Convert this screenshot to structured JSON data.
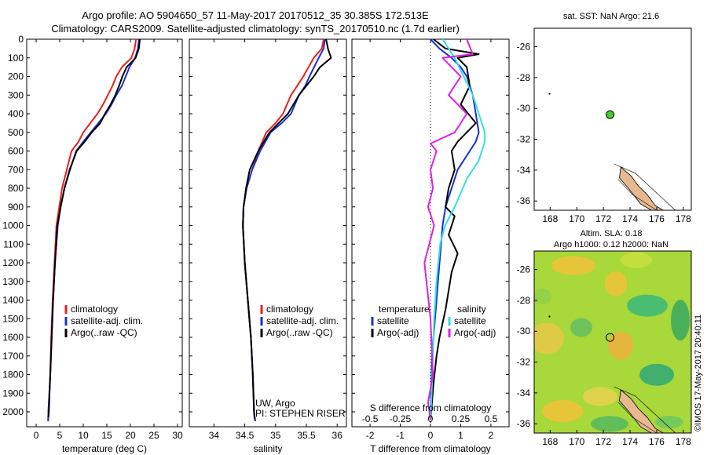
{
  "header": {
    "line1": "Argo profile: AO 5904650_57 11-May-2017 20170512_35 30.385S 172.513E",
    "line2": "Climatology: CARS2009. Satellite-adjusted climatology: synTS_20170510.nc (1.7d earlier)"
  },
  "colors": {
    "climatology": "#e8201c",
    "satellite": "#1a2fd6",
    "argo": "#000000",
    "sal_satellite": "#33e0e0",
    "sal_argo": "#e020e0",
    "land": "#e8b890"
  },
  "chart_data": [
    {
      "type": "line",
      "xlabel": "temperature (deg C)",
      "ylabel": "",
      "xlim": [
        -2,
        31
      ],
      "ylim": [
        2080,
        0
      ],
      "xticks": [
        "0",
        "5",
        "10",
        "15",
        "20",
        "25",
        "30"
      ],
      "yticks": [
        "0",
        "100",
        "200",
        "300",
        "400",
        "500",
        "600",
        "700",
        "800",
        "900",
        "1000",
        "1100",
        "1200",
        "1300",
        "1400",
        "1500",
        "1600",
        "1700",
        "1800",
        "1900",
        "2000"
      ],
      "legend": [
        "climatology",
        "satellite-adj. clim.",
        "Argo(..raw -QC)"
      ],
      "legend_position": "lower-center",
      "series": [
        {
          "name": "climatology",
          "x": [
            21.2,
            20.9,
            20.2,
            18.2,
            17.0,
            16.2,
            15.2,
            14.2,
            13.0,
            11.5,
            10.0,
            9.0,
            7.5,
            6.5,
            5.5,
            4.9,
            4.3,
            3.9,
            3.5,
            3.2,
            3.0,
            2.8,
            2.6,
            2.55
          ],
          "y": [
            0,
            50,
            100,
            150,
            200,
            250,
            300,
            350,
            400,
            450,
            500,
            550,
            600,
            700,
            800,
            900,
            1000,
            1200,
            1400,
            1600,
            1800,
            1900,
            2000,
            2050
          ]
        },
        {
          "name": "satellite-adj. clim.",
          "x": [
            21.8,
            21.6,
            21.0,
            19.8,
            19.0,
            18.2,
            17.0,
            16.0,
            14.8,
            13.2,
            11.6,
            10.0,
            8.5,
            7.2,
            6.0,
            5.2,
            4.6,
            4.0,
            3.6,
            3.3,
            3.0,
            2.8,
            2.6,
            2.55
          ],
          "y": [
            0,
            50,
            100,
            150,
            200,
            250,
            300,
            350,
            400,
            450,
            500,
            550,
            600,
            700,
            800,
            900,
            1000,
            1200,
            1400,
            1600,
            1800,
            1900,
            2000,
            2050
          ]
        },
        {
          "name": "Argo(..raw -QC)",
          "x": [
            22.0,
            21.8,
            21.1,
            19.2,
            18.3,
            17.6,
            16.8,
            15.8,
            14.6,
            13.6,
            11.8,
            10.3,
            8.6,
            7.1,
            6.0,
            5.2,
            4.5,
            4.0,
            3.6,
            3.3,
            3.0,
            2.85,
            2.7,
            2.6
          ],
          "y": [
            0,
            50,
            100,
            150,
            200,
            250,
            300,
            350,
            400,
            450,
            500,
            550,
            600,
            700,
            800,
            900,
            1000,
            1200,
            1400,
            1600,
            1800,
            1900,
            2000,
            2030
          ]
        }
      ]
    },
    {
      "type": "line",
      "xlabel": "salinity",
      "xlim": [
        33.6,
        36.15
      ],
      "ylim": [
        2080,
        0
      ],
      "xticks": [
        "34",
        "34.5",
        "35",
        "35.5",
        "36"
      ],
      "legend": [
        "climatology",
        "satellite-adj. clim.",
        "Argo(..raw -QC)"
      ],
      "annotations": [
        "UW, Argo",
        "PI: STEPHEN RISER"
      ],
      "series": [
        {
          "name": "climatology",
          "x": [
            35.78,
            35.75,
            35.62,
            35.45,
            35.35,
            35.25,
            35.12,
            35.0,
            34.85,
            34.72,
            34.62,
            34.53,
            34.48,
            34.47,
            34.5,
            34.55,
            34.6,
            34.63,
            34.65,
            34.67
          ],
          "y": [
            0,
            50,
            100,
            200,
            250,
            300,
            400,
            450,
            500,
            600,
            700,
            800,
            900,
            1000,
            1200,
            1400,
            1600,
            1800,
            2000,
            2050
          ]
        },
        {
          "name": "satellite-adj. clim.",
          "x": [
            35.8,
            35.78,
            35.7,
            35.55,
            35.48,
            35.38,
            35.25,
            35.1,
            34.92,
            34.75,
            34.62,
            34.53,
            34.48,
            34.47,
            34.5,
            34.55,
            34.6,
            34.63,
            34.65,
            34.67
          ],
          "y": [
            0,
            50,
            100,
            200,
            250,
            300,
            400,
            450,
            500,
            600,
            700,
            800,
            900,
            1000,
            1200,
            1400,
            1600,
            1800,
            2000,
            2050
          ]
        },
        {
          "name": "Argo(..raw -QC)",
          "x": [
            35.82,
            35.85,
            35.9,
            35.72,
            35.62,
            35.5,
            35.38,
            35.2,
            35.05,
            34.9,
            34.72,
            34.58,
            34.52,
            34.48,
            34.47,
            34.5,
            34.55,
            34.6,
            34.63,
            34.65,
            34.66
          ],
          "y": [
            0,
            50,
            100,
            150,
            200,
            250,
            300,
            400,
            450,
            500,
            600,
            700,
            800,
            900,
            1000,
            1200,
            1400,
            1600,
            1800,
            2000,
            2040
          ]
        }
      ]
    },
    {
      "type": "line",
      "xlabel": "T difference from climatology",
      "xlabel_top": "S difference from climatology",
      "xlim": [
        -2.6,
        2.6
      ],
      "ylim": [
        2080,
        0
      ],
      "xticks": [
        "-2",
        "-1",
        "0",
        "1",
        "2"
      ],
      "xticks_s": [
        "-0.5",
        "-0.25",
        "0",
        "0.25",
        "0.5"
      ],
      "legend_temperature": [
        "temperature",
        "satellite",
        "Argo(-adj)"
      ],
      "legend_salinity": [
        "salinity",
        "satellite",
        "Argo(-adj)"
      ],
      "series": [
        {
          "name": "satellite",
          "x": [
            0.0,
            0.3,
            0.7,
            1.0,
            1.2,
            1.4,
            1.5,
            1.6,
            1.5,
            1.3,
            1.1,
            0.9,
            0.7,
            0.5,
            0.4,
            0.35,
            0.3,
            0.25,
            0.2,
            0.15,
            0.1,
            0.05,
            0.02,
            0.0
          ],
          "y": [
            0,
            50,
            100,
            150,
            200,
            300,
            400,
            500,
            550,
            600,
            650,
            700,
            800,
            900,
            1000,
            1100,
            1200,
            1300,
            1400,
            1500,
            1600,
            1700,
            1900,
            2040
          ]
        },
        {
          "name": "Argo(-adj)",
          "x": [
            0.1,
            0.5,
            1.6,
            0.9,
            1.2,
            1.3,
            1.0,
            1.5,
            0.9,
            0.7,
            0.8,
            0.6,
            0.5,
            0.8,
            0.6,
            0.9,
            0.7,
            0.6,
            0.5,
            0.3,
            0.2,
            0.1,
            0.05,
            0.0
          ],
          "y": [
            0,
            50,
            80,
            100,
            150,
            250,
            350,
            450,
            550,
            600,
            700,
            800,
            900,
            950,
            1050,
            1150,
            1250,
            1350,
            1450,
            1600,
            1700,
            1850,
            1950,
            2040
          ]
        },
        {
          "name": "salinity satellite",
          "x": [
            0.1,
            0.2,
            0.35,
            0.45,
            0.45,
            0.4,
            0.3,
            0.2,
            0.12,
            0.08,
            0.05,
            0.03,
            0.02,
            0.01,
            0.0
          ],
          "y": [
            0,
            100,
            300,
            500,
            550,
            650,
            750,
            900,
            1000,
            1100,
            1300,
            1500,
            1700,
            1900,
            2040
          ]
        },
        {
          "name": "salinity Argo(-adj)",
          "x": [
            0.3,
            0.35,
            0.1,
            0.25,
            0.15,
            0.3,
            0.2,
            0.0,
            0.05,
            0.0,
            0.02,
            -0.02,
            0.03,
            -0.05,
            0.0,
            0.02,
            -0.02,
            0.0
          ],
          "y": [
            0,
            80,
            100,
            200,
            300,
            400,
            500,
            560,
            600,
            700,
            800,
            900,
            1000,
            1200,
            1500,
            1800,
            1950,
            2040
          ]
        }
      ]
    }
  ],
  "map_top": {
    "label": "sat. SST: NaN Argo: 21.6",
    "xticks": [
      "168",
      "170",
      "172",
      "174",
      "176",
      "178"
    ],
    "yticks": [
      "-26",
      "-28",
      "-30",
      "-32",
      "-34",
      "-36"
    ],
    "marker_lon": 172.5,
    "marker_lat": -30.4,
    "marker_color": "#3fcf2f"
  },
  "map_bottom": {
    "label1": "Altim. SLA: 0.18",
    "label2": "Argo h1000: 0.12 h2000: NaN",
    "xticks": [
      "168",
      "170",
      "172",
      "174",
      "176",
      "178"
    ],
    "yticks": [
      "-26",
      "-28",
      "-30",
      "-32",
      "-34",
      "-36"
    ],
    "marker_lon": 172.5,
    "marker_lat": -30.4
  },
  "credit": "©IMOS 17-May-2017 20:40:11"
}
